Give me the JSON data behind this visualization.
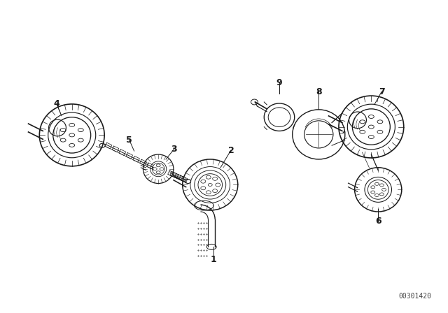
{
  "background_color": "#ffffff",
  "line_color": "#1a1a1a",
  "figure_width": 6.4,
  "figure_height": 4.48,
  "dpi": 100,
  "watermark": "00301420",
  "watermark_fontsize": 7,
  "label_fontsize": 9
}
